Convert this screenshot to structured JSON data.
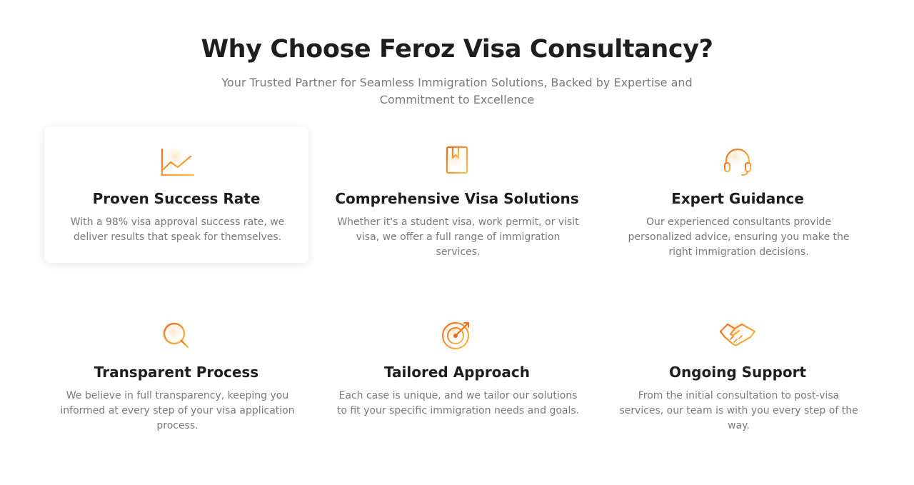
{
  "header": {
    "title": "Why Choose Feroz Visa Consultancy?",
    "subtitle": "Your Trusted Partner for Seamless Immigration Solutions, Backed by Expertise and Commitment to Excellence"
  },
  "colors": {
    "accent": "#f26b1d",
    "accent_light": "#fbbf4a",
    "title": "#1e1e1e",
    "body_text": "#7a7a7a"
  },
  "features": [
    {
      "icon": "chart-icon",
      "title": "Proven Success Rate",
      "text": "With a 98% visa approval success rate, we deliver results that speak for themselves."
    },
    {
      "icon": "book-icon",
      "title": "Comprehensive Visa Solutions",
      "text": "Whether it's a student visa, work permit, or visit visa, we offer a full range of immigration services."
    },
    {
      "icon": "headset-icon",
      "title": "Expert Guidance",
      "text": "Our experienced consultants provide personalized advice, ensuring you make the right immigration decisions."
    },
    {
      "icon": "magnifier-icon",
      "title": "Transparent Process",
      "text": "We believe in full transparency, keeping you informed at every step of your visa application process."
    },
    {
      "icon": "target-icon",
      "title": "Tailored Approach",
      "text": "Each case is unique, and we tailor our solutions to fit your specific immigration needs and goals."
    },
    {
      "icon": "handshake-icon",
      "title": "Ongoing Support",
      "text": "From the initial consultation to post-visa services, our team is with you every step of the way."
    }
  ]
}
